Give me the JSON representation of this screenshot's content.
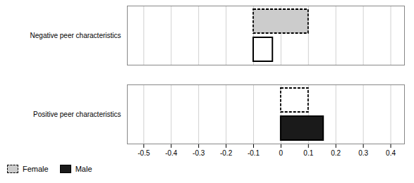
{
  "chart_data": {
    "type": "bar",
    "orientation": "horizontal",
    "categories": [
      "Positive peer characteristics",
      "Negative peer characteristics"
    ],
    "series": [
      {
        "name": "Female",
        "color": "#cccccc",
        "colors": [
          "#ffffff",
          "#cccccc"
        ],
        "line_style": "dashed",
        "values": [
          0.1,
          0.2
        ],
        "base": [
          0.0,
          -0.1
        ]
      },
      {
        "name": "Male",
        "color": "#1a1a1a",
        "colors": [
          "#1a1a1a",
          "#ffffff"
        ],
        "line_style": "solid",
        "values": [
          0.155,
          0.07
        ],
        "base": [
          0.0,
          -0.1
        ]
      }
    ],
    "xlim": [
      -0.56,
      0.45
    ],
    "xticks": [
      -0.5,
      -0.4,
      -0.3,
      -0.2,
      -0.1,
      0.0,
      0.1,
      0.2,
      0.3,
      0.4
    ],
    "grid": true,
    "legend": "lower left"
  }
}
